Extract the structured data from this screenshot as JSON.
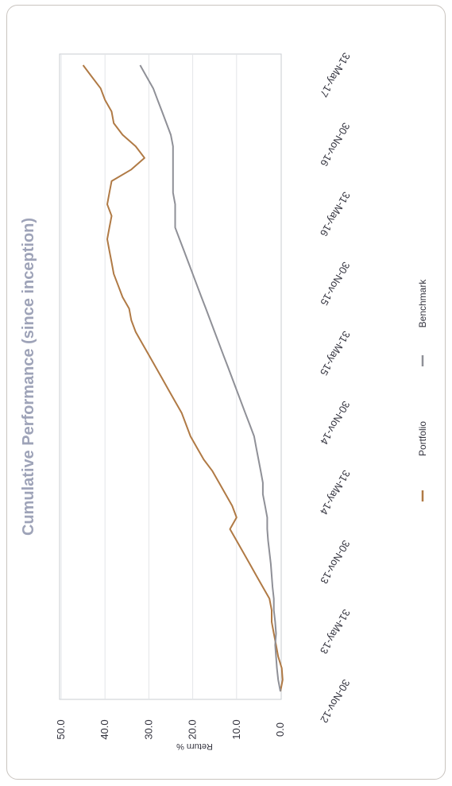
{
  "chart_data": {
    "type": "line",
    "title": "Cumulative Performance (since inception)",
    "ylabel": "Return %",
    "xlabel": "",
    "ylim": [
      0,
      50
    ],
    "yticks": [
      "0.0",
      "10.0",
      "20.0",
      "30.0",
      "40.0",
      "50.0"
    ],
    "ytick_values": [
      0,
      10,
      20,
      30,
      40,
      50
    ],
    "x_tick_labels": [
      "30-Nov-12",
      "31-May-13",
      "30-Nov-13",
      "31-May-14",
      "30-Nov-14",
      "31-May-15",
      "30-Nov-15",
      "31-May-16",
      "30-Nov-16",
      "31-May-17"
    ],
    "x_range_months": [
      0,
      54
    ],
    "grid": true,
    "legend_placement": "bottom",
    "series": [
      {
        "name": "Portfolio",
        "color": "#b07a45",
        "x": [
          0,
          1,
          2,
          3,
          4,
          5,
          6,
          7,
          8,
          9,
          10,
          11,
          12,
          13,
          14,
          15,
          16,
          17,
          18,
          19,
          20,
          21,
          22,
          23,
          24,
          25,
          26,
          27,
          28,
          29,
          30,
          31,
          32,
          33,
          34,
          35,
          36,
          37,
          38,
          39,
          40,
          41,
          42,
          43,
          44,
          45,
          46,
          47,
          48,
          49,
          50,
          51,
          52,
          53,
          54
        ],
        "values": [
          0.0,
          -0.5,
          -0.3,
          0.5,
          1.0,
          1.5,
          2.0,
          2.0,
          2.5,
          4.0,
          5.5,
          7.0,
          8.5,
          10.0,
          11.5,
          10.0,
          11.0,
          12.5,
          14.0,
          15.5,
          17.5,
          19.0,
          20.5,
          21.5,
          22.5,
          24.0,
          25.5,
          27.0,
          28.5,
          30.0,
          31.5,
          33.0,
          34.0,
          34.5,
          36.0,
          37.0,
          38.0,
          38.5,
          39.0,
          39.5,
          39.0,
          38.5,
          39.5,
          39.0,
          38.5,
          34.0,
          31.0,
          33.0,
          36.0,
          38.0,
          38.5,
          40.0,
          41.0,
          43.0,
          45.0
        ]
      },
      {
        "name": "Benchmark",
        "color": "#8f9097",
        "x": [
          0,
          1,
          2,
          3,
          4,
          5,
          6,
          7,
          8,
          9,
          10,
          11,
          12,
          13,
          14,
          15,
          16,
          17,
          18,
          19,
          20,
          21,
          22,
          23,
          24,
          25,
          26,
          27,
          28,
          29,
          30,
          31,
          32,
          33,
          34,
          35,
          36,
          37,
          38,
          39,
          40,
          41,
          42,
          43,
          44,
          45,
          46,
          47,
          48,
          49,
          50,
          51,
          52,
          53,
          54
        ],
        "values": [
          0.0,
          0.5,
          0.8,
          1.0,
          1.2,
          1.0,
          1.2,
          1.5,
          1.5,
          1.8,
          2.0,
          2.2,
          2.5,
          2.8,
          3.0,
          3.0,
          3.5,
          4.0,
          4.0,
          4.5,
          5.0,
          5.5,
          6.0,
          7.0,
          8.0,
          9.0,
          10.0,
          11.0,
          12.0,
          13.0,
          14.0,
          15.0,
          16.0,
          17.0,
          18.0,
          19.0,
          20.0,
          21.0,
          22.0,
          23.0,
          24.0,
          24.0,
          24.0,
          24.5,
          24.5,
          24.5,
          24.5,
          24.5,
          25.0,
          26.0,
          27.0,
          28.0,
          29.0,
          30.5,
          32.0
        ]
      }
    ]
  }
}
